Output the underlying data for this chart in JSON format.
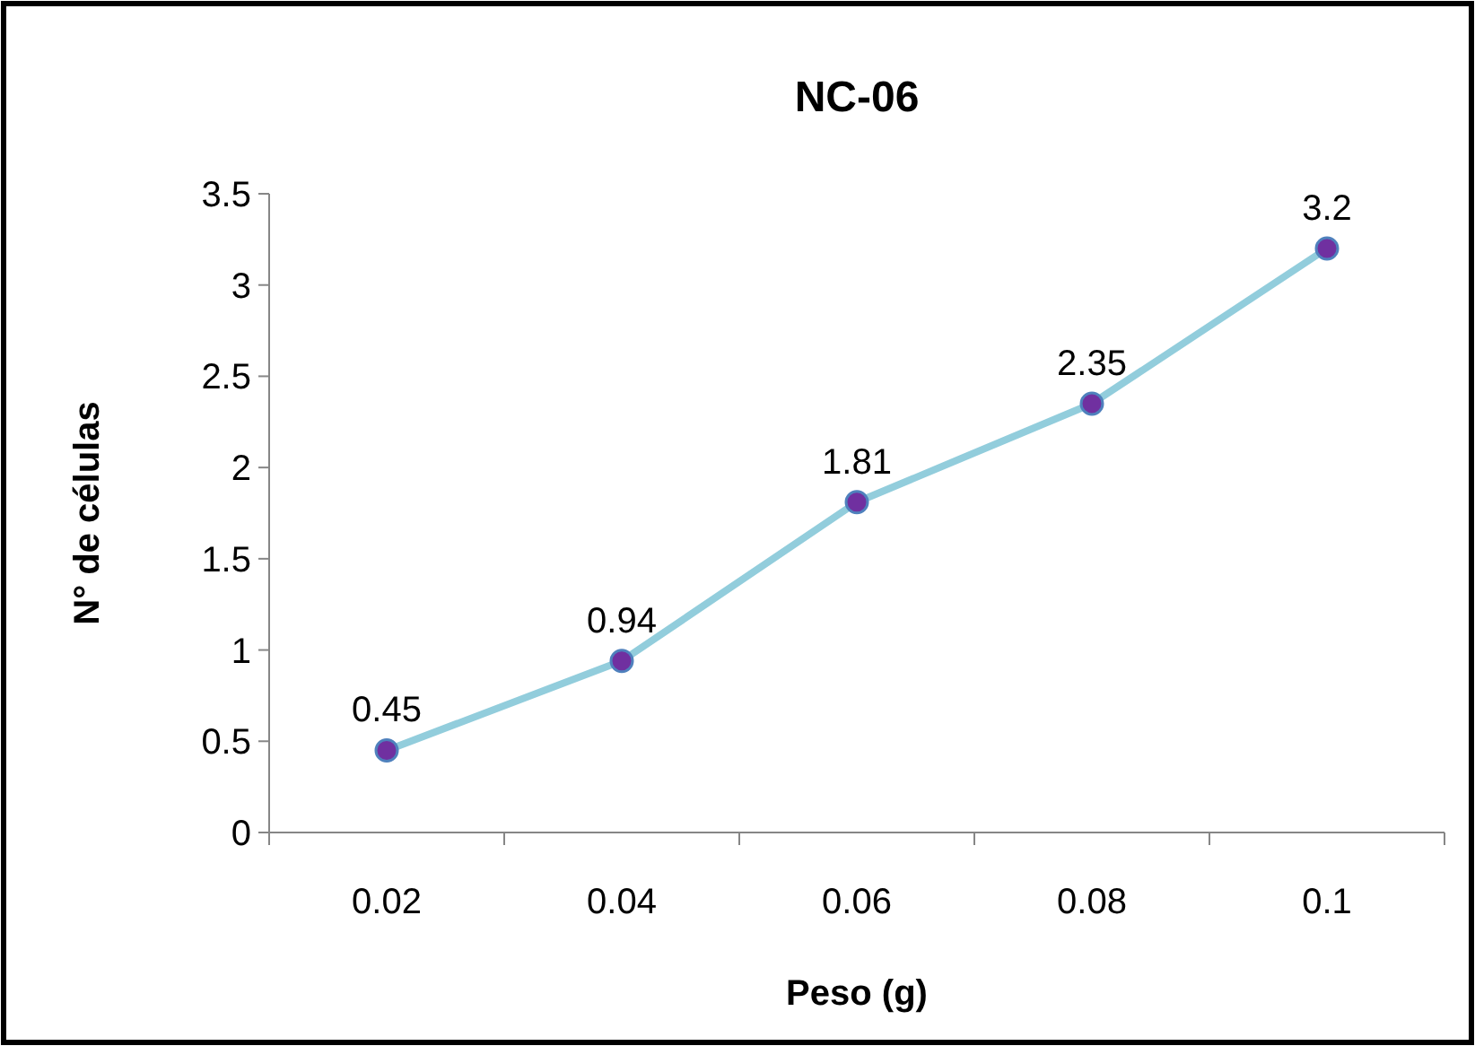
{
  "chart_data": {
    "type": "line",
    "title": "NC-06",
    "xlabel": "Peso (g)",
    "ylabel": "N° de células",
    "categories": [
      "0.02",
      "0.04",
      "0.06",
      "0.08",
      "0.1"
    ],
    "series": [
      {
        "color": "#92cddc",
        "values": [
          0.45,
          0.94,
          1.81,
          2.35,
          3.2
        ]
      }
    ],
    "ylim": [
      0,
      3.5
    ],
    "yticks": [
      0,
      0.5,
      1,
      1.5,
      2,
      2.5,
      3,
      3.5
    ],
    "grid": false,
    "marker": "circle",
    "line_style": "solid",
    "data_labels": true
  }
}
